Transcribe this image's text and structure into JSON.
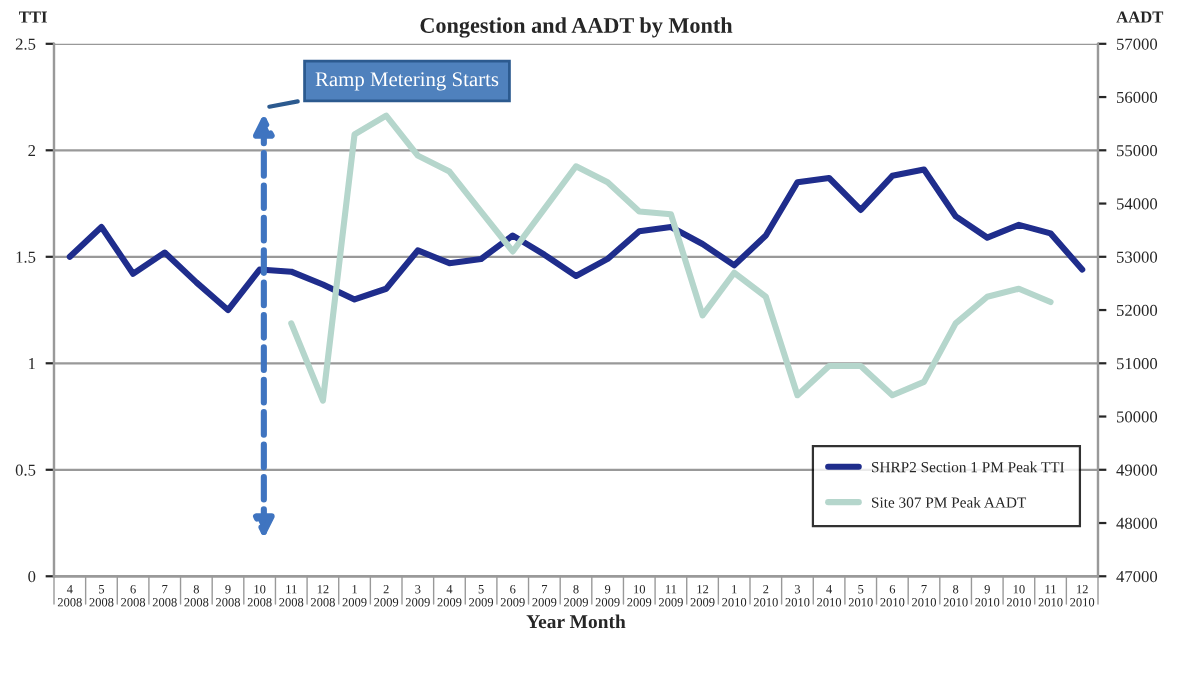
{
  "chart_data": {
    "type": "line",
    "title": "Congestion and AADT by Month",
    "xlabel": "Year Month",
    "ylabel": "TTI",
    "y2label": "AADT",
    "categories": [
      "4\n2008",
      "5\n2008",
      "6\n2008",
      "7\n2008",
      "8\n2008",
      "9\n2008",
      "10\n2008",
      "11\n2008",
      "12\n2008",
      "1\n2009",
      "2\n2009",
      "3\n2009",
      "4\n2009",
      "5\n2009",
      "6\n2009",
      "7\n2009",
      "8\n2009",
      "9\n2009",
      "10\n2009",
      "11\n2009",
      "12\n2009",
      "1\n2010",
      "2\n2010",
      "3\n2010",
      "4\n2010",
      "5\n2010",
      "6\n2010",
      "7\n2010",
      "8\n2010",
      "9\n2010",
      "10\n2010",
      "11\n2010",
      "12\n2010"
    ],
    "series": [
      {
        "name": "SHRP2 Section 1 PM Peak TTI",
        "color": "#1f2d8c",
        "values": [
          1.5,
          1.64,
          1.42,
          1.52,
          1.38,
          1.25,
          1.44,
          1.43,
          1.37,
          1.3,
          1.35,
          1.53,
          1.47,
          1.49,
          1.6,
          1.51,
          1.41,
          1.49,
          1.62,
          1.64,
          1.56,
          1.46,
          1.6,
          1.85,
          1.87,
          1.72,
          1.88,
          1.91,
          1.69,
          1.59,
          1.65,
          1.61,
          1.44
        ]
      },
      {
        "name": "Site 307 PM Peak AADT",
        "color": "#b5d6cc",
        "axis": "y2",
        "values": [
          null,
          null,
          null,
          null,
          null,
          null,
          null,
          51750,
          50300,
          55300,
          55650,
          54900,
          54600,
          53850,
          53100,
          53900,
          54700,
          54400,
          53850,
          53800,
          51900,
          52700,
          52250,
          50400,
          50950,
          50950,
          50400,
          50650,
          51750,
          52250,
          52400,
          52150,
          null
        ]
      }
    ],
    "ylim": [
      0,
      2.5
    ],
    "yticks": [
      0,
      0.5,
      1,
      1.5,
      2,
      2.5
    ],
    "y2lim": [
      47000,
      57000
    ],
    "y2ticks": [
      47000,
      48000,
      49000,
      50000,
      51000,
      52000,
      53000,
      54000,
      55000,
      56000,
      57000
    ],
    "grid": "y",
    "legend": "bottom right",
    "annotations": [
      "Ramp Metering Starts"
    ]
  }
}
